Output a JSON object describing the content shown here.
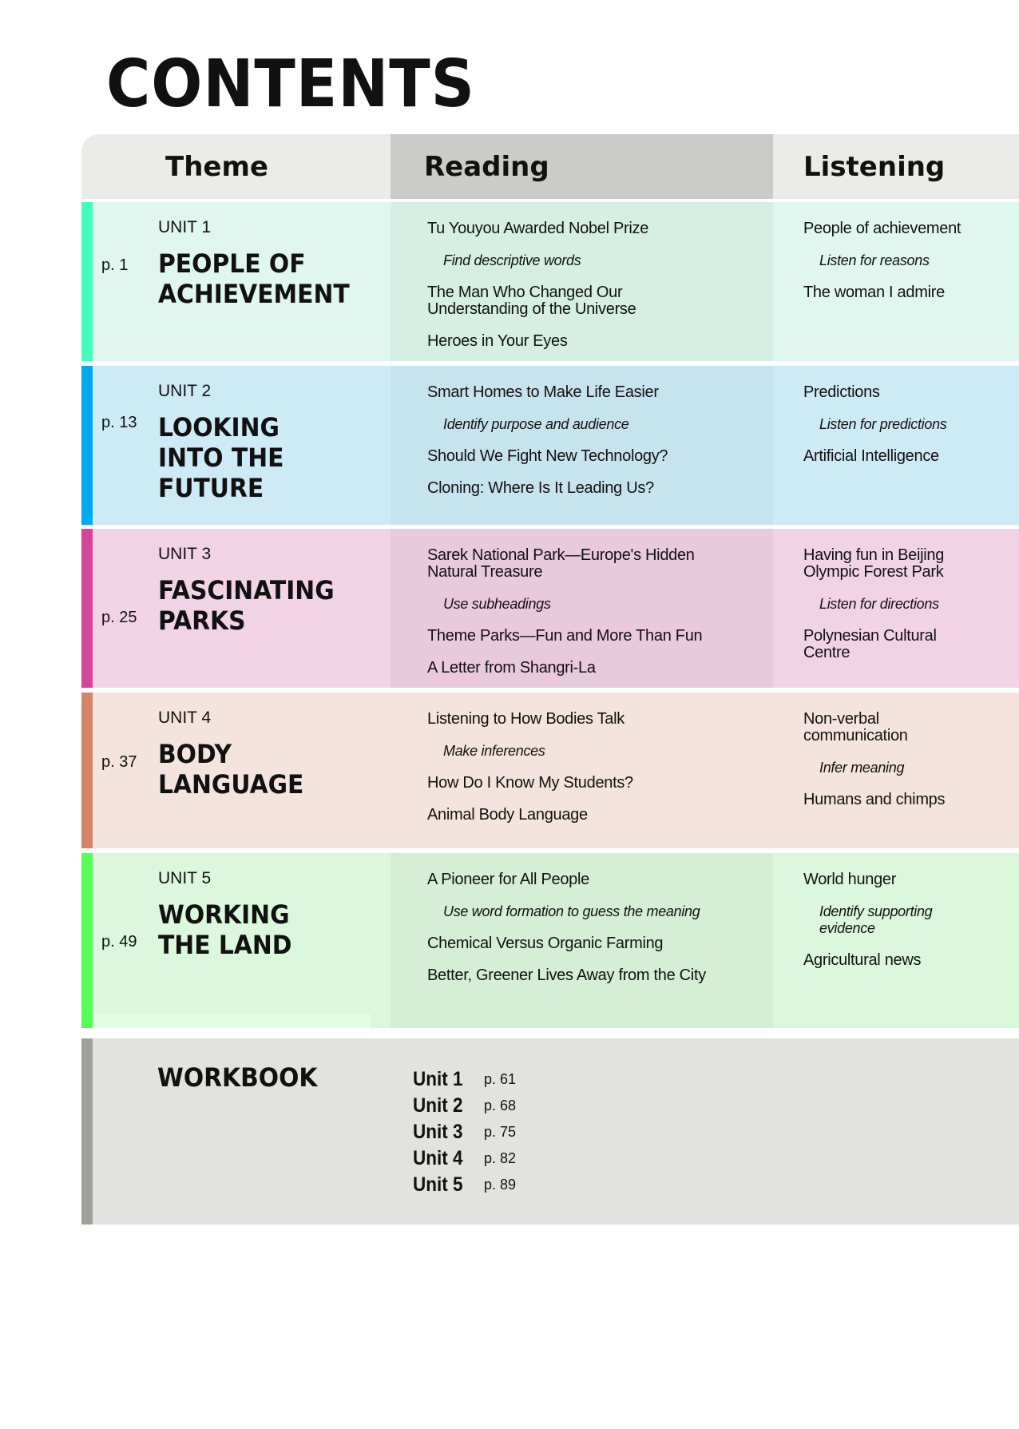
{
  "title": "CONTENTS",
  "header": {
    "theme": "Theme",
    "reading": "Reading",
    "listening": "Listening"
  },
  "colors": {
    "header_theme": "#ebebea",
    "header_reading": "#cbcbca"
  },
  "units": [
    {
      "page": "p. 1",
      "unit": "UNIT 1",
      "heading": [
        "PEOPLE OF",
        "ACHIEVEMENT"
      ],
      "bar": "#44ffbb",
      "bg": "#dff7ee",
      "reading_bg": "#d5efe4",
      "reading": [
        {
          "t": "Tu Youyou Awarded Nobel Prize"
        },
        {
          "t": "Find descriptive words",
          "i": true
        },
        {
          "t": "The Man Who Changed Our Understanding of the Universe"
        },
        {
          "t": "Heroes in Your Eyes"
        }
      ],
      "listening": [
        {
          "t": "People of achievement"
        },
        {
          "t": "Listen for reasons",
          "i": true
        },
        {
          "t": "The woman I admire"
        }
      ]
    },
    {
      "page": "p. 13",
      "unit": "UNIT 2",
      "heading": [
        "LOOKING",
        "INTO THE",
        "FUTURE"
      ],
      "bar": "#00aaee",
      "bg": "#cdeaf7",
      "reading_bg": "#c6e4f0",
      "reading": [
        {
          "t": "Smart Homes to Make Life Easier"
        },
        {
          "t": "Identify purpose and audience",
          "i": true
        },
        {
          "t": "Should We Fight New Technology?"
        },
        {
          "t": "Cloning: Where Is It Leading Us?"
        }
      ],
      "listening": [
        {
          "t": "Predictions"
        },
        {
          "t": "Listen for predictions",
          "i": true
        },
        {
          "t": "Artificial Intelligence"
        }
      ]
    },
    {
      "page": "p. 25",
      "unit": "UNIT 3",
      "heading": [
        "FASCINATING",
        "PARKS"
      ],
      "bar": "#d6449b",
      "bg": "#f2d3e6",
      "reading_bg": "#e9c9dc",
      "reading": [
        {
          "t": "Sarek National Park—Europe's Hidden Natural Treasure"
        },
        {
          "t": "Use subheadings",
          "i": true
        },
        {
          "t": "Theme Parks—Fun and More Than Fun"
        },
        {
          "t": "A Letter from Shangri-La"
        }
      ],
      "listening": [
        {
          "t": "Having fun in Beijing Olympic Forest Park"
        },
        {
          "t": "Listen for directions",
          "i": true
        },
        {
          "t": "Polynesian Cultural Centre"
        }
      ]
    },
    {
      "page": "p. 37",
      "unit": "UNIT 4",
      "heading": [
        "BODY",
        "LANGUAGE"
      ],
      "bar": "#d58466",
      "bg": "#f5e4de",
      "reading_bg": "#f5e4de",
      "reading": [
        {
          "t": "Listening to How Bodies Talk"
        },
        {
          "t": "Make inferences",
          "i": true
        },
        {
          "t": "How Do I Know My Students?"
        },
        {
          "t": "Animal Body Language"
        }
      ],
      "listening": [
        {
          "t": "Non-verbal communication"
        },
        {
          "t": "Infer meaning",
          "i": true
        },
        {
          "t": "Humans and chimps"
        }
      ]
    },
    {
      "page": "p. 49",
      "unit": "UNIT 5",
      "heading": [
        "WORKING",
        "THE LAND"
      ],
      "bar": "#55ff55",
      "bg": "#dbf8dc",
      "reading_bg": "#d4efd4",
      "reading": [
        {
          "t": "A Pioneer for All People"
        },
        {
          "t": "Use word formation to guess the meaning",
          "i": true
        },
        {
          "t": "Chemical Versus Organic Farming"
        },
        {
          "t": "Better, Greener Lives Away from the City"
        }
      ],
      "listening": [
        {
          "t": "World hunger"
        },
        {
          "t": "Identify supporting evidence",
          "i": true
        },
        {
          "t": "Agricultural news"
        }
      ]
    }
  ],
  "workbook": {
    "title": "WORKBOOK",
    "items": [
      {
        "unit": "Unit 1",
        "page": "p. 61"
      },
      {
        "unit": "Unit 2",
        "page": "p. 68"
      },
      {
        "unit": "Unit 3",
        "page": "p. 75"
      },
      {
        "unit": "Unit 4",
        "page": "p. 82"
      },
      {
        "unit": "Unit 5",
        "page": "p. 89"
      }
    ]
  }
}
